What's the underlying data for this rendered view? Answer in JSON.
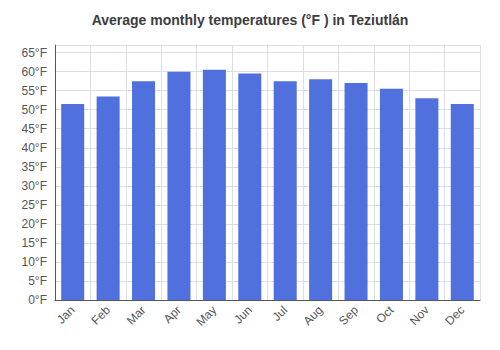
{
  "chart_data": {
    "type": "bar",
    "title": "Average monthly temperatures (°F ) in Teziutlán",
    "categories": [
      "Jan",
      "Feb",
      "Mar",
      "Apr",
      "May",
      "Jun",
      "Jul",
      "Aug",
      "Sep",
      "Oct",
      "Nov",
      "Dec"
    ],
    "values": [
      51.5,
      53.5,
      57.5,
      60.0,
      60.5,
      59.5,
      57.5,
      58.0,
      57.0,
      55.5,
      53.0,
      51.5
    ],
    "ylim": [
      0,
      67
    ],
    "yticks": [
      {
        "value": 0,
        "label": "0°F"
      },
      {
        "value": 5,
        "label": "5°F"
      },
      {
        "value": 10,
        "label": "10°F"
      },
      {
        "value": 15,
        "label": "15°F"
      },
      {
        "value": 20,
        "label": "20°F"
      },
      {
        "value": 25,
        "label": "25°F"
      },
      {
        "value": 30,
        "label": "30°F"
      },
      {
        "value": 35,
        "label": "35°F"
      },
      {
        "value": 40,
        "label": "40°F"
      },
      {
        "value": 45,
        "label": "45°F"
      },
      {
        "value": 50,
        "label": "50°F"
      },
      {
        "value": 55,
        "label": "55°F"
      },
      {
        "value": 60,
        "label": "60°F"
      },
      {
        "value": 65,
        "label": "65°F"
      }
    ],
    "grid": true
  }
}
